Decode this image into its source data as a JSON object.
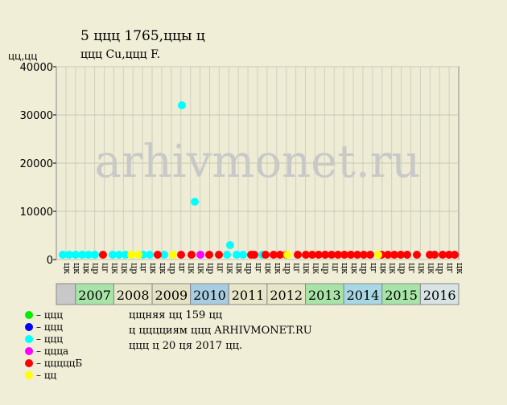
{
  "chart_data": {
    "type": "scatter",
    "title": [
      "5 ццц 1765,ццы ц",
      "ццц Cu,ццц F."
    ],
    "y_label": "цц,цц",
    "watermark": "arhivmonet.ru",
    "xlim": [
      0,
      42
    ],
    "ylim": [
      0,
      40000
    ],
    "yticks": [
      0,
      10000,
      20000,
      30000,
      40000
    ],
    "grid": true,
    "quarter_labels": [
      "цк",
      "цк",
      "цк",
      "цр",
      "цг",
      "цк",
      "цк",
      "цр",
      "цг",
      "цк",
      "цк",
      "цр",
      "цг",
      "цк",
      "цк",
      "цр",
      "цг",
      "цк",
      "цк",
      "цр",
      "цг",
      "цк",
      "цк",
      "цр",
      "цг",
      "цк",
      "цк",
      "цр",
      "цг",
      "цк",
      "цк",
      "цр",
      "цг",
      "цк",
      "цк",
      "цр",
      "цг",
      "цк",
      "цк",
      "цр",
      "цг",
      "цк"
    ],
    "years": [
      "2007",
      "2008",
      "2009",
      "2010",
      "2011",
      "2012",
      "2013",
      "2014",
      "2015",
      "2016"
    ],
    "year_colors": [
      "#a8e4a8",
      "#e8e6c8",
      "#e4e2c4",
      "#a8cce0",
      "#e8e6c8",
      "#e8e6c8",
      "#a8e4a8",
      "#a8d8e4",
      "#a8e4a8",
      "#d8e4e4"
    ],
    "series": [
      {
        "name": "– ццц",
        "color": "#00ee00",
        "x": [],
        "values": []
      },
      {
        "name": "– ццц",
        "color": "#0000ff",
        "x": [],
        "values": []
      },
      {
        "name": "– ццц",
        "color": "#00ffff",
        "x": [
          0.67,
          1.34,
          2.02,
          2.69,
          3.36,
          4.03,
          5.88,
          6.55,
          7.22,
          9.07,
          9.74,
          11.26,
          13.1,
          14.45,
          17.81,
          18.14,
          18.82,
          19.49,
          21.5
        ],
        "values": [
          1000,
          1000,
          1000,
          1000,
          1000,
          1000,
          1000,
          1000,
          1000,
          1000,
          1000,
          1000,
          32000,
          12000,
          1000,
          3000,
          1000,
          1000,
          1000
        ]
      },
      {
        "name": "– цццa",
        "color": "#ff00ff",
        "x": [
          15.04
        ],
        "values": [
          1000
        ]
      },
      {
        "name": "– цццццБ",
        "color": "#ff0000",
        "x": [
          4.87,
          10.58,
          13.02,
          14.11,
          15.96,
          16.97,
          20.33,
          20.66,
          21.84,
          22.68,
          23.35,
          24.02,
          25.2,
          26.04,
          26.71,
          27.38,
          28.06,
          28.73,
          29.4,
          30.07,
          30.74,
          31.42,
          32.09,
          32.76,
          33.94,
          34.61,
          35.28,
          35.95,
          36.62,
          37.63,
          38.98,
          39.48,
          40.32,
          40.99,
          41.58
        ],
        "values": [
          1000,
          1000,
          1000,
          1000,
          1000,
          1000,
          1000,
          1000,
          1000,
          1000,
          1000,
          1000,
          1000,
          1000,
          1000,
          1000,
          1000,
          1000,
          1000,
          1000,
          1000,
          1000,
          1000,
          1000,
          1000,
          1000,
          1000,
          1000,
          1000,
          1000,
          1000,
          1000,
          1000,
          1000,
          1000
        ]
      },
      {
        "name": "– цц",
        "color": "#ffff00",
        "x": [
          7.81,
          8.57,
          12.18,
          24.11,
          33.6
        ],
        "values": [
          1000,
          1000,
          1000,
          1000,
          1000
        ]
      }
    ],
    "notes": [
      "цщняя цц 159 цц",
      "ц цццциям ццц ARHIVMONET.RU",
      "ццц ц 20 ця 2017 цц."
    ]
  }
}
